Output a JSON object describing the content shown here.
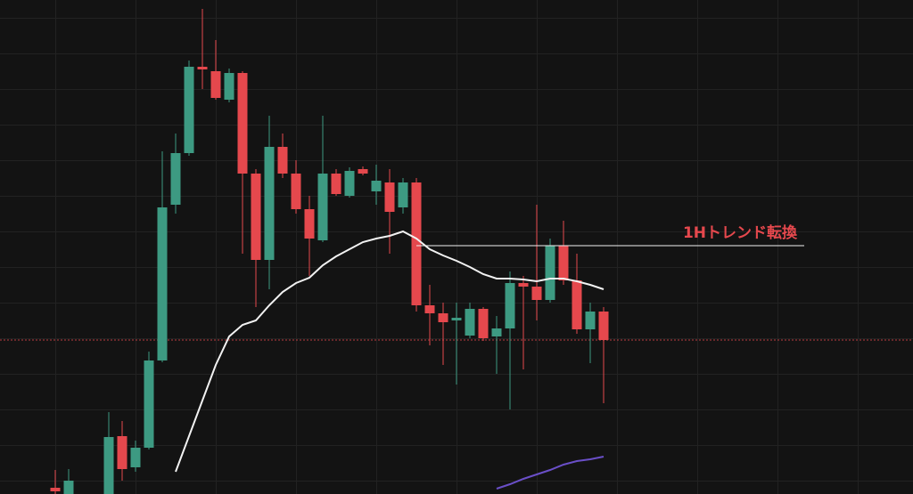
{
  "chart_data": {
    "type": "candlestick",
    "up_color": "#3d9a82",
    "down_color": "#e5484d",
    "ylim": [
      0,
      555
    ],
    "open": [
      7,
      0,
      null,
      null,
      0,
      65,
      30,
      52,
      150,
      325,
      383,
      480,
      475,
      443,
      473,
      360,
      263,
      390,
      360,
      320,
      285,
      360,
      335,
      365,
      340,
      350,
      322,
      350,
      212,
      203,
      195,
      178,
      208,
      177,
      186,
      237,
      233,
      218,
      279,
      240,
      185,
      205
    ],
    "high": [
      27,
      28,
      null,
      null,
      92,
      82,
      60,
      160,
      385,
      405,
      487,
      545,
      510,
      478,
      475,
      365,
      425,
      405,
      375,
      335,
      425,
      365,
      367,
      368,
      370,
      365,
      355,
      355,
      235,
      215,
      215,
      215,
      210,
      200,
      250,
      245,
      325,
      287,
      307,
      270,
      215,
      210
    ],
    "low": [
      0,
      0,
      null,
      null,
      0,
      15,
      25,
      50,
      148,
      315,
      380,
      455,
      443,
      440,
      270,
      210,
      230,
      355,
      315,
      245,
      283,
      335,
      333,
      358,
      325,
      270,
      315,
      205,
      167,
      145,
      123,
      175,
      172,
      135,
      95,
      140,
      195,
      215,
      235,
      180,
      147,
      102
    ],
    "close": [
      3,
      15,
      null,
      null,
      64,
      28,
      52,
      150,
      322,
      383,
      480,
      477,
      445,
      473,
      360,
      263,
      390,
      360,
      320,
      287,
      360,
      337,
      363,
      360,
      352,
      317,
      350,
      212,
      203,
      193,
      198,
      208,
      175,
      186,
      237,
      233,
      218,
      279,
      240,
      185,
      205,
      173
    ],
    "lines": [
      {
        "color": "#f2f2f2",
        "values": [
          null,
          null,
          null,
          null,
          null,
          null,
          null,
          null,
          null,
          25,
          65,
          105,
          145,
          177,
          190,
          195,
          212,
          227,
          237,
          243,
          257,
          267,
          275,
          283,
          287,
          290,
          295,
          287,
          275,
          268,
          262,
          255,
          247,
          242,
          242,
          241,
          239,
          242,
          242,
          239,
          235,
          230
        ]
      },
      {
        "color": "#6a4fc8",
        "values": [
          null,
          null,
          null,
          null,
          null,
          null,
          null,
          null,
          null,
          null,
          null,
          null,
          null,
          null,
          null,
          null,
          null,
          null,
          null,
          null,
          null,
          null,
          null,
          null,
          null,
          null,
          null,
          null,
          null,
          null,
          null,
          null,
          null,
          6,
          11,
          17,
          22,
          27,
          33,
          37,
          39,
          42
        ]
      }
    ],
    "trend_line": {
      "value": 279,
      "start": 27,
      "end": 56,
      "label": "1Hトレンド転換",
      "color": "#e5484d"
    },
    "price_line": 173
  }
}
